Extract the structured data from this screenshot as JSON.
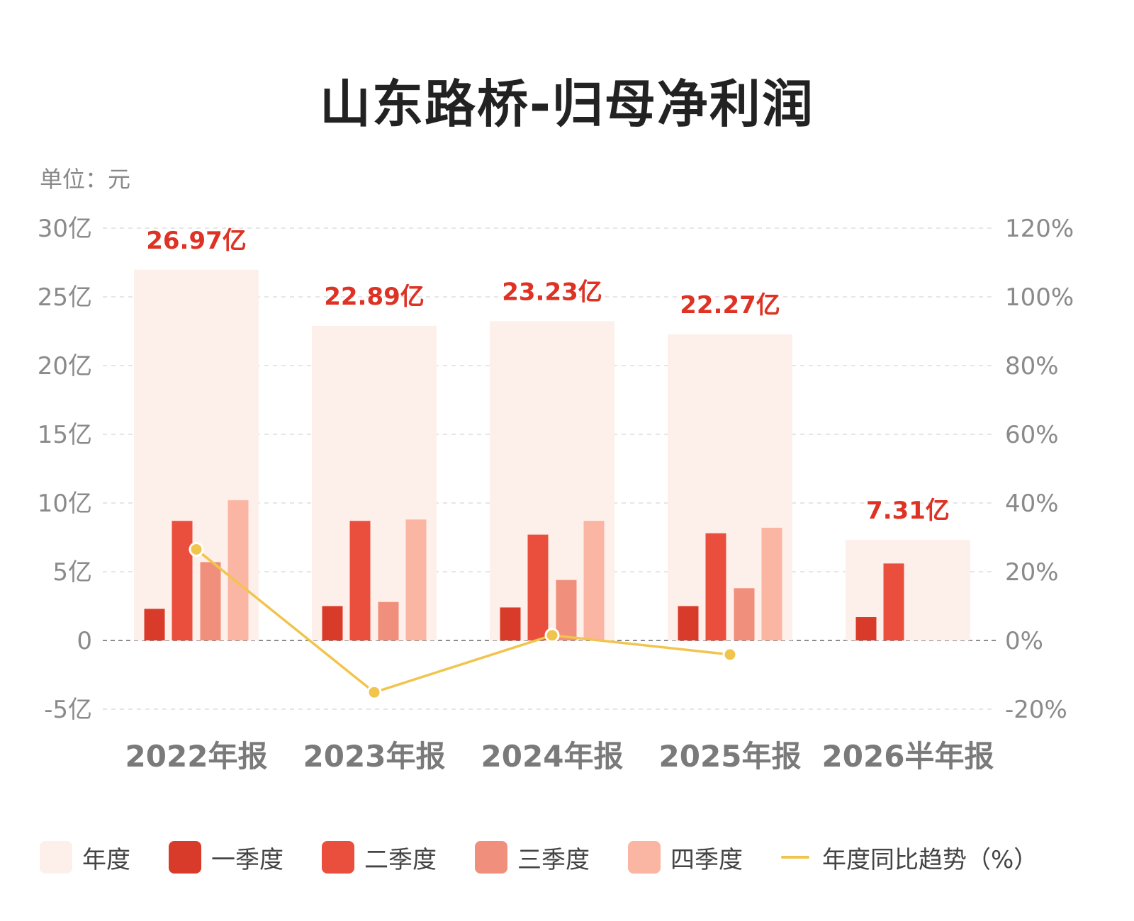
{
  "unit_label": "单位：元",
  "colors": {
    "annual": "#fdf0eb",
    "q1": "#d93b2a",
    "q2": "#ea4f3d",
    "q3": "#f08f7b",
    "q4": "#fbb5a3",
    "trend": "#f1c44d",
    "annual_label": "#dd3224",
    "axis_text": "#8a8a8a",
    "grid": "#dddddd",
    "zero": "#666666"
  },
  "chart_data": {
    "type": "bar",
    "title": "山东路桥-归母净利润",
    "categories": [
      "2022年报",
      "2023年报",
      "2024年报",
      "2025年报",
      "2026半年报"
    ],
    "ylim": [
      -5,
      30
    ],
    "y2lim": [
      -20,
      120
    ],
    "y_ticks": [
      {
        "value": 30,
        "label": "30亿"
      },
      {
        "value": 25,
        "label": "25亿"
      },
      {
        "value": 20,
        "label": "20亿"
      },
      {
        "value": 15,
        "label": "15亿"
      },
      {
        "value": 10,
        "label": "10亿"
      },
      {
        "value": 5,
        "label": "5亿"
      },
      {
        "value": 0,
        "label": "0"
      },
      {
        "value": -5,
        "label": "-5亿"
      }
    ],
    "y2_ticks": [
      {
        "value": 120,
        "label": "120%"
      },
      {
        "value": 100,
        "label": "100%"
      },
      {
        "value": 80,
        "label": "80%"
      },
      {
        "value": 60,
        "label": "60%"
      },
      {
        "value": 40,
        "label": "40%"
      },
      {
        "value": 20,
        "label": "20%"
      },
      {
        "value": 0,
        "label": "0%"
      },
      {
        "value": -20,
        "label": "-20%"
      }
    ],
    "grid": true,
    "legend_position": "bottom",
    "series": [
      {
        "name": "年度",
        "key": "annual",
        "values": [
          26.97,
          22.89,
          23.23,
          22.27,
          7.31
        ],
        "labels": [
          "26.97亿",
          "22.89亿",
          "23.23亿",
          "22.27亿",
          "7.31亿"
        ]
      },
      {
        "name": "一季度",
        "key": "q1",
        "values": [
          2.3,
          2.5,
          2.4,
          2.5,
          1.7
        ]
      },
      {
        "name": "二季度",
        "key": "q2",
        "values": [
          8.7,
          8.7,
          7.7,
          7.8,
          5.6
        ]
      },
      {
        "name": "三季度",
        "key": "q3",
        "values": [
          5.7,
          2.8,
          4.4,
          3.8,
          null
        ]
      },
      {
        "name": "四季度",
        "key": "q4",
        "values": [
          10.2,
          8.8,
          8.7,
          8.2,
          null
        ]
      },
      {
        "name": "年度同比趋势（%）",
        "key": "trend",
        "axis": "right",
        "values": [
          26.5,
          -15.1,
          1.5,
          -4.1,
          null
        ]
      }
    ]
  }
}
